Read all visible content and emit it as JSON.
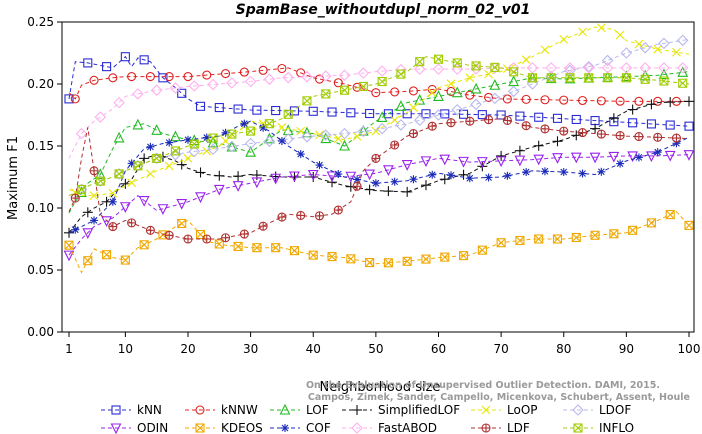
{
  "chart_data": {
    "type": "line",
    "title": "SpamBase_withoutdupl_norm_02_v01",
    "xlabel": "Neighborhood size",
    "ylabel": "Maximum F1",
    "xlim": [
      1,
      100
    ],
    "ylim": [
      0,
      0.25
    ],
    "xticks": [
      1,
      10,
      20,
      30,
      40,
      50,
      60,
      70,
      80,
      90,
      100
    ],
    "yticks": [
      "0.00",
      "0.05",
      "0.10",
      "0.15",
      "0.20",
      "0.25"
    ],
    "grid": false,
    "legend_position": "bottom",
    "credit": [
      "Campos, Zimek, Sander, Campello, Micenkova, Schubert, Assent, Houle",
      "On the Evaluation of Unsupervised Outlier Detection. DAMI, 2015."
    ],
    "series": [
      {
        "name": "kNN",
        "color": "#2b2bd6",
        "marker": "square",
        "x": [
          1,
          2,
          4,
          6,
          8,
          10,
          11,
          12,
          14,
          16,
          18,
          20,
          22,
          25,
          30,
          40,
          50,
          60,
          70,
          80,
          90,
          100
        ],
        "y": [
          0.188,
          0.218,
          0.217,
          0.215,
          0.213,
          0.222,
          0.214,
          0.221,
          0.218,
          0.205,
          0.197,
          0.188,
          0.182,
          0.181,
          0.179,
          0.178,
          0.176,
          0.176,
          0.175,
          0.172,
          0.169,
          0.166
        ]
      },
      {
        "name": "kNNW",
        "color": "#e02020",
        "marker": "circle",
        "x": [
          1,
          2,
          3,
          5,
          8,
          10,
          15,
          20,
          30,
          36,
          40,
          45,
          48,
          50,
          55,
          60,
          65,
          70,
          80,
          90,
          100
        ],
        "y": [
          0.193,
          0.188,
          0.199,
          0.203,
          0.205,
          0.206,
          0.206,
          0.206,
          0.21,
          0.213,
          0.205,
          0.2,
          0.196,
          0.193,
          0.194,
          0.196,
          0.191,
          0.188,
          0.187,
          0.186,
          0.186
        ]
      },
      {
        "name": "LOF",
        "color": "#22bb22",
        "marker": "triangle-up",
        "x": [
          1,
          2,
          4,
          6,
          8,
          10,
          13,
          16,
          20,
          25,
          30,
          35,
          40,
          45,
          50,
          55,
          60,
          65,
          70,
          75,
          80,
          85,
          90,
          95,
          100
        ],
        "y": [
          0.096,
          0.105,
          0.12,
          0.127,
          0.148,
          0.165,
          0.168,
          0.16,
          0.155,
          0.152,
          0.145,
          0.163,
          0.16,
          0.15,
          0.17,
          0.185,
          0.19,
          0.195,
          0.2,
          0.205,
          0.204,
          0.205,
          0.206,
          0.207,
          0.21
        ]
      },
      {
        "name": "SimplifiedLOF",
        "color": "#111111",
        "marker": "plus",
        "x": [
          1,
          3,
          5,
          7,
          9,
          11,
          13,
          15,
          18,
          20,
          23,
          27,
          30,
          35,
          40,
          45,
          50,
          55,
          60,
          65,
          70,
          75,
          80,
          85,
          90,
          95,
          100
        ],
        "y": [
          0.08,
          0.093,
          0.1,
          0.105,
          0.116,
          0.123,
          0.14,
          0.143,
          0.138,
          0.132,
          0.127,
          0.125,
          0.127,
          0.125,
          0.125,
          0.118,
          0.114,
          0.113,
          0.122,
          0.128,
          0.142,
          0.149,
          0.155,
          0.164,
          0.178,
          0.185,
          0.186
        ]
      },
      {
        "name": "LoOP",
        "color": "#e6e600",
        "marker": "x",
        "x": [
          1,
          3,
          5,
          8,
          10,
          15,
          20,
          25,
          30,
          35,
          40,
          45,
          50,
          55,
          60,
          65,
          70,
          75,
          80,
          85,
          88,
          90,
          95,
          100
        ],
        "y": [
          0.115,
          0.11,
          0.11,
          0.112,
          0.118,
          0.13,
          0.14,
          0.15,
          0.17,
          0.165,
          0.16,
          0.155,
          0.162,
          0.177,
          0.197,
          0.205,
          0.21,
          0.222,
          0.236,
          0.246,
          0.244,
          0.235,
          0.228,
          0.224
        ]
      },
      {
        "name": "LDOF",
        "color": "#b8b8ee",
        "marker": "diamond",
        "x": [
          1,
          3,
          5,
          8,
          10,
          15,
          20,
          25,
          30,
          35,
          40,
          45,
          50,
          55,
          60,
          65,
          70,
          75,
          80,
          85,
          90,
          95,
          100
        ],
        "y": [
          0.11,
          0.115,
          0.12,
          0.125,
          0.13,
          0.14,
          0.145,
          0.148,
          0.152,
          0.155,
          0.158,
          0.16,
          0.163,
          0.168,
          0.175,
          0.182,
          0.19,
          0.2,
          0.21,
          0.215,
          0.225,
          0.232,
          0.236
        ]
      },
      {
        "name": "ODIN",
        "color": "#9922ee",
        "marker": "triangle-down",
        "x": [
          1,
          3,
          5,
          8,
          10,
          12,
          15,
          20,
          25,
          30,
          35,
          40,
          45,
          50,
          55,
          60,
          65,
          70,
          75,
          80,
          85,
          90,
          95,
          100
        ],
        "y": [
          0.062,
          0.075,
          0.085,
          0.092,
          0.101,
          0.11,
          0.098,
          0.105,
          0.115,
          0.12,
          0.125,
          0.127,
          0.125,
          0.128,
          0.135,
          0.14,
          0.137,
          0.138,
          0.139,
          0.141,
          0.141,
          0.142,
          0.142,
          0.143
        ]
      },
      {
        "name": "COF",
        "color": "#1a2ab8",
        "marker": "asterisk",
        "x": [
          1,
          3,
          5,
          8,
          10,
          13,
          16,
          20,
          25,
          28,
          30,
          33,
          36,
          40,
          45,
          50,
          55,
          60,
          65,
          70,
          75,
          80,
          85,
          90,
          95,
          100
        ],
        "y": [
          0.08,
          0.085,
          0.09,
          0.105,
          0.13,
          0.148,
          0.152,
          0.155,
          0.158,
          0.166,
          0.17,
          0.162,
          0.15,
          0.137,
          0.125,
          0.12,
          0.122,
          0.128,
          0.124,
          0.125,
          0.13,
          0.129,
          0.127,
          0.138,
          0.145,
          0.157
        ]
      },
      {
        "name": "FastABOD",
        "color": "#ffb0ee",
        "marker": "diamond",
        "x": [
          1,
          3,
          5,
          8,
          10,
          15,
          20,
          25,
          30,
          35,
          40,
          45,
          50,
          55,
          60,
          65,
          70,
          75,
          80,
          85,
          90,
          95,
          100
        ],
        "y": [
          0.14,
          0.16,
          0.17,
          0.18,
          0.19,
          0.195,
          0.198,
          0.2,
          0.202,
          0.205,
          0.206,
          0.207,
          0.21,
          0.212,
          0.212,
          0.212,
          0.213,
          0.213,
          0.213,
          0.213,
          0.213,
          0.213,
          0.213
        ]
      },
      {
        "name": "KDEOS",
        "color": "#f0a800",
        "marker": "square-x",
        "x": [
          1,
          3,
          5,
          8,
          10,
          12,
          15,
          18,
          20,
          23,
          26,
          30,
          35,
          40,
          45,
          50,
          55,
          60,
          65,
          70,
          75,
          80,
          85,
          90,
          95,
          98,
          100
        ],
        "y": [
          0.07,
          0.048,
          0.067,
          0.06,
          0.058,
          0.068,
          0.075,
          0.085,
          0.09,
          0.073,
          0.07,
          0.068,
          0.068,
          0.062,
          0.06,
          0.055,
          0.057,
          0.06,
          0.062,
          0.072,
          0.075,
          0.075,
          0.078,
          0.08,
          0.09,
          0.097,
          0.086
        ]
      },
      {
        "name": "LDF",
        "color": "#b03030",
        "marker": "circle-plus",
        "x": [
          1,
          2,
          3,
          4,
          6,
          8,
          10,
          15,
          20,
          25,
          30,
          33,
          36,
          40,
          43,
          46,
          48,
          50,
          55,
          60,
          65,
          70,
          75,
          80,
          85,
          90,
          95,
          100
        ],
        "y": [
          0.097,
          0.108,
          0.14,
          0.165,
          0.095,
          0.085,
          0.09,
          0.08,
          0.075,
          0.075,
          0.08,
          0.088,
          0.095,
          0.093,
          0.095,
          0.105,
          0.13,
          0.14,
          0.158,
          0.168,
          0.17,
          0.172,
          0.165,
          0.162,
          0.16,
          0.158,
          0.157,
          0.156
        ]
      },
      {
        "name": "INFLO",
        "color": "#a0cc00",
        "marker": "square-x",
        "x": [
          1,
          3,
          5,
          8,
          10,
          15,
          20,
          25,
          30,
          35,
          40,
          45,
          50,
          55,
          58,
          60,
          65,
          70,
          75,
          80,
          85,
          90,
          95,
          100
        ],
        "y": [
          0.11,
          0.115,
          0.12,
          0.125,
          0.13,
          0.14,
          0.15,
          0.158,
          0.162,
          0.172,
          0.19,
          0.195,
          0.2,
          0.21,
          0.222,
          0.22,
          0.215,
          0.213,
          0.205,
          0.205,
          0.205,
          0.205,
          0.203,
          0.2
        ]
      }
    ]
  }
}
